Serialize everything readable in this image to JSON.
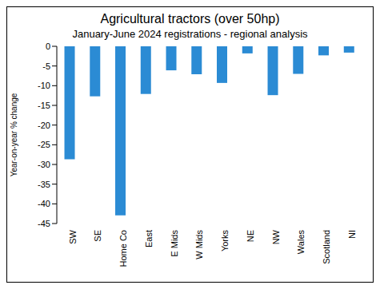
{
  "chart_data": {
    "type": "bar",
    "title": "Agricultural tractors (over 50hp)",
    "subtitle": "January-June 2024 registrations - regional analysis",
    "y_label": "Year-on-year  % change",
    "categories": [
      "SW",
      "SE",
      "Home Co",
      "East",
      "E Mids",
      "W Mids",
      "Yorks",
      "NE",
      "NW",
      "Wales",
      "Scotland",
      "NI"
    ],
    "values": [
      -28.7,
      -12.7,
      -42.9,
      -12.1,
      -6.1,
      -7.1,
      -9.3,
      -1.8,
      -12.4,
      -7.0,
      -2.3,
      -1.6
    ],
    "color": "#2b8bd4",
    "ylim": [
      -45,
      0
    ],
    "yticks": [
      -45,
      -40,
      -35,
      -30,
      -25,
      -20,
      -15,
      -10,
      -5,
      0
    ],
    "grid": false
  }
}
